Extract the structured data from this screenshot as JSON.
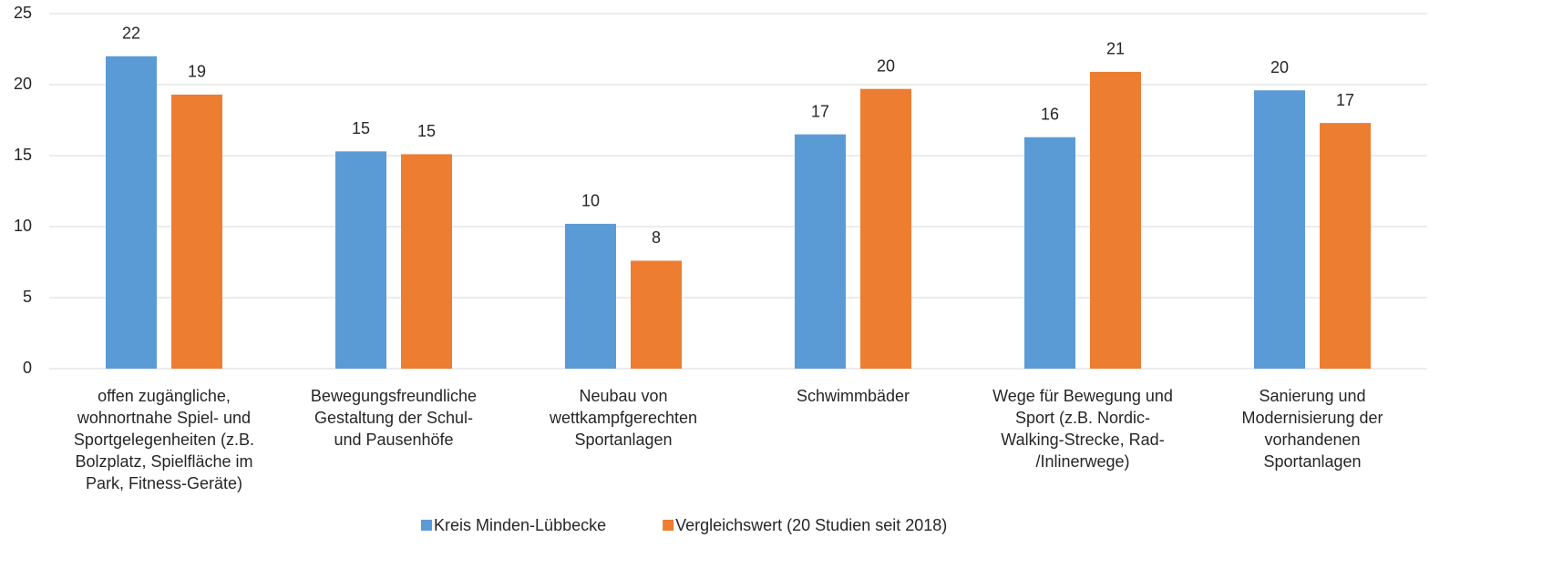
{
  "chart_data": {
    "type": "bar",
    "categories": [
      [
        "offen zugängliche,",
        "wohnortnahe Spiel- und",
        "Sportgelegenheiten (z.B.",
        "Bolzplatz, Spielfläche im",
        "Park, Fitness-Geräte)"
      ],
      [
        "Bewegungsfreundliche",
        "Gestaltung der Schul-",
        "und Pausenhöfe"
      ],
      [
        "Neubau von",
        "wettkampfgerechten",
        "Sportanlagen"
      ],
      [
        "Schwimmbäder"
      ],
      [
        "Wege für Bewegung und",
        "Sport (z.B. Nordic-",
        "Walking-Strecke, Rad-",
        "/Inlinerwege)"
      ],
      [
        "Sanierung und",
        "Modernisierung der",
        "vorhandenen",
        "Sportanlagen"
      ]
    ],
    "series": [
      {
        "name": "Kreis Minden-Lübbecke",
        "color": "#5b9bd5",
        "values": [
          22.0,
          15.3,
          10.2,
          16.5,
          16.3,
          19.6
        ],
        "value_labels": [
          "22",
          "15",
          "10",
          "17",
          "16",
          "20"
        ]
      },
      {
        "name": "Vergleichswert (20 Studien seit 2018)",
        "color": "#ed7d31",
        "values": [
          19.3,
          15.1,
          7.6,
          19.7,
          20.9,
          17.3
        ],
        "value_labels": [
          "19",
          "15",
          "8",
          "20",
          "21",
          "17"
        ]
      }
    ],
    "ylim": [
      0,
      25
    ],
    "yticks": [
      0,
      5,
      10,
      15,
      20,
      25
    ],
    "grid": true,
    "legend": "bottom"
  }
}
